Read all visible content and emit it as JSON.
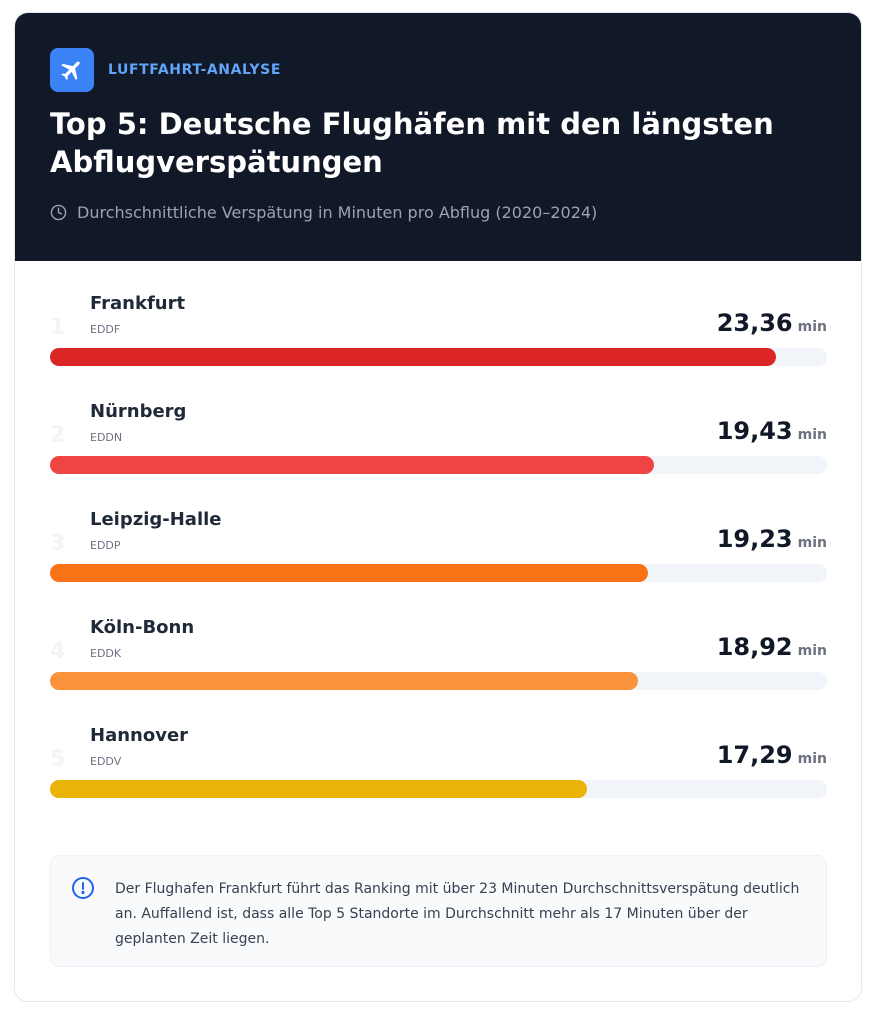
{
  "header": {
    "eyebrow": "LUFTFAHRT-ANALYSE",
    "title": "Top 5: Deutsche Flughäfen mit den längsten Abflugverspätungen",
    "subtitle": "Durchschnittliche Verspätung in Minuten pro Abflug (2020–2024)",
    "icon": "plane-icon",
    "subtitle_icon": "clock-icon"
  },
  "chart_data": {
    "type": "bar",
    "orientation": "horizontal",
    "title": "Top 5: Deutsche Flughäfen mit den längsten Abflugverspätungen",
    "subtitle": "Durchschnittliche Verspätung in Minuten pro Abflug (2020–2024)",
    "unit": "min",
    "xlim": [
      0,
      25
    ],
    "items": [
      {
        "rank": "1",
        "name": "Frankfurt",
        "code": "EDDF",
        "value": 23.36,
        "value_label": "23,36",
        "color": "#dc2626"
      },
      {
        "rank": "2",
        "name": "Nürnberg",
        "code": "EDDN",
        "value": 19.43,
        "value_label": "19,43",
        "color": "#ef4444"
      },
      {
        "rank": "3",
        "name": "Leipzig-Halle",
        "code": "EDDP",
        "value": 19.23,
        "value_label": "19,23",
        "color": "#f97316"
      },
      {
        "rank": "4",
        "name": "Köln-Bonn",
        "code": "EDDK",
        "value": 18.92,
        "value_label": "18,92",
        "color": "#fb923c"
      },
      {
        "rank": "5",
        "name": "Hannover",
        "code": "EDDV",
        "value": 17.29,
        "value_label": "17,29",
        "color": "#eab308"
      }
    ]
  },
  "note": {
    "icon": "info-icon",
    "text": "Der Flughafen Frankfurt führt das Ranking mit über 23 Minuten Durchschnittsverspätung deutlich an. Auffallend ist, dass alle Top 5 Standorte im Durchschnitt mehr als 17 Minuten über der geplanten Zeit liegen."
  },
  "colors": {
    "header_bg": "#111827",
    "accent": "#3b82f6",
    "track": "#f1f5f9"
  }
}
